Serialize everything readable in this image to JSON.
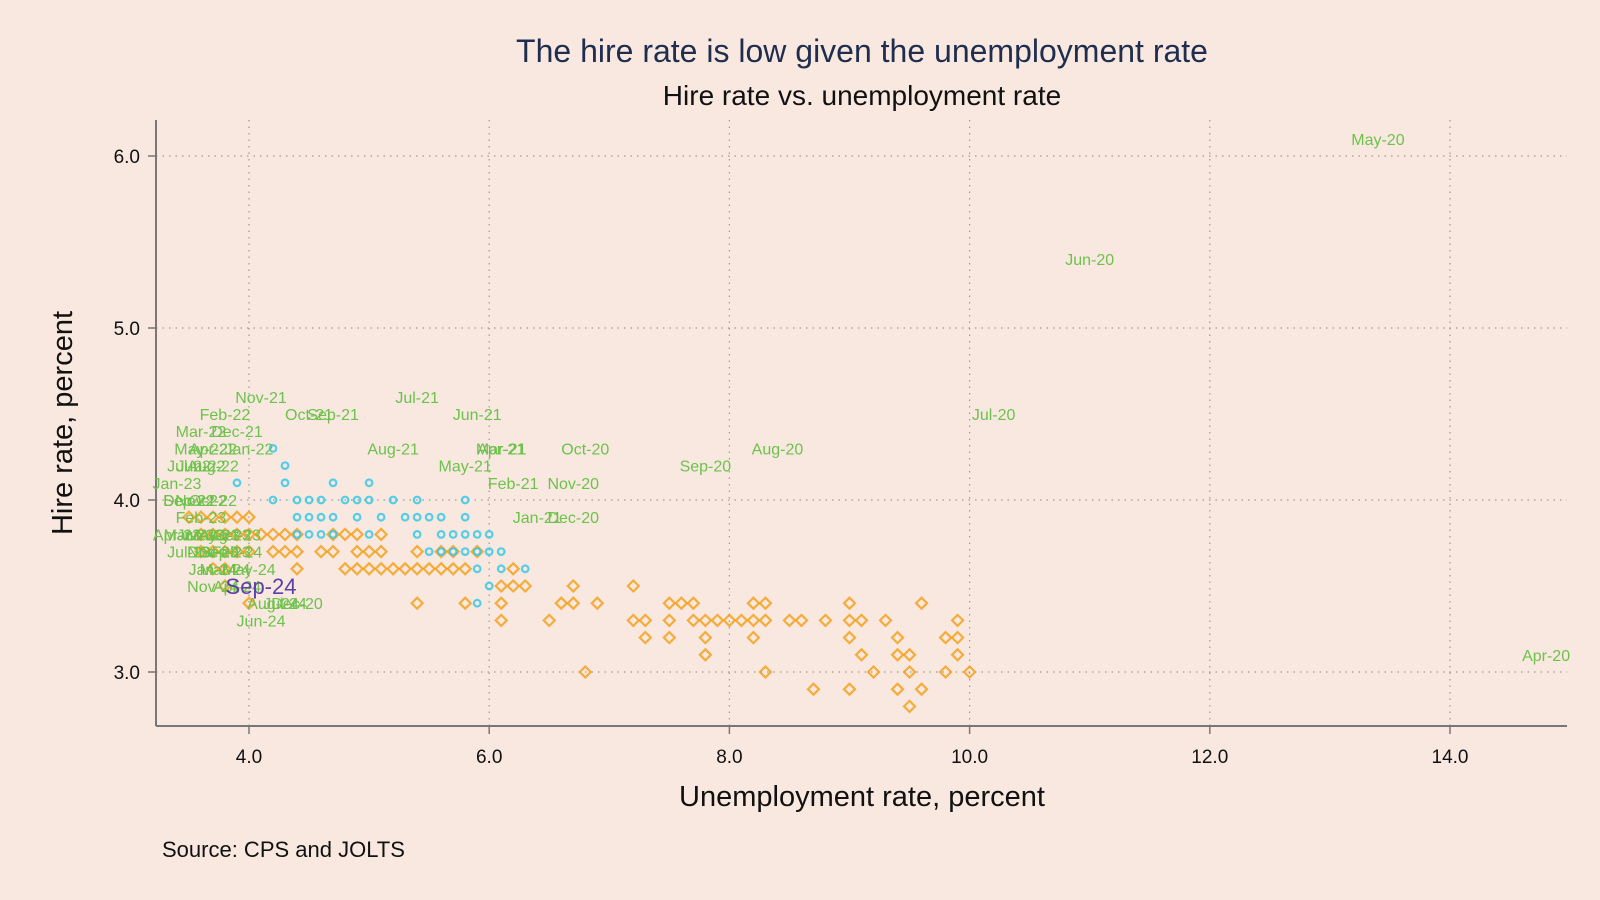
{
  "chart_data": {
    "type": "scatter",
    "title": "The hire rate is low given the unemployment rate",
    "subtitle": "Hire rate vs. unemployment rate",
    "xlabel": "Unemployment rate, percent",
    "ylabel": "Hire rate, percent",
    "note": "Source: CPS and JOLTS",
    "xlim": [
      3.2,
      15.0
    ],
    "ylim": [
      2.7,
      6.2
    ],
    "x_ticks": [
      4,
      6,
      8,
      10,
      12,
      14
    ],
    "x_tick_labels": [
      "4.0",
      "6.0",
      "8.0",
      "10.0",
      "12.0",
      "14.0"
    ],
    "y_ticks": [
      3,
      4,
      5,
      6
    ],
    "y_tick_labels": [
      "3.0",
      "4.0",
      "5.0",
      "6.0"
    ],
    "grid": true,
    "colors": {
      "background": "#f9e8e0",
      "orange_series": "#f39c12",
      "cyan_series": "#29c7e8",
      "labels": "#6cc24a",
      "highlight": "#5b3fa8",
      "title": "#1f2e4f"
    },
    "series": [
      {
        "marker": "diamond",
        "color": "#f39c12",
        "points": [
          [
            3.5,
            3.9
          ],
          [
            3.6,
            3.9
          ],
          [
            3.7,
            3.9
          ],
          [
            3.8,
            3.9
          ],
          [
            3.9,
            3.9
          ],
          [
            4.0,
            3.9
          ],
          [
            3.6,
            3.8
          ],
          [
            3.7,
            3.8
          ],
          [
            3.8,
            3.8
          ],
          [
            3.9,
            3.8
          ],
          [
            4.0,
            3.8
          ],
          [
            4.1,
            3.8
          ],
          [
            4.2,
            3.8
          ],
          [
            4.3,
            3.8
          ],
          [
            4.4,
            3.8
          ],
          [
            4.7,
            3.8
          ],
          [
            4.8,
            3.8
          ],
          [
            4.9,
            3.8
          ],
          [
            5.1,
            3.8
          ],
          [
            3.6,
            3.7
          ],
          [
            3.7,
            3.7
          ],
          [
            3.8,
            3.7
          ],
          [
            3.9,
            3.7
          ],
          [
            4.0,
            3.7
          ],
          [
            4.2,
            3.7
          ],
          [
            4.3,
            3.7
          ],
          [
            4.4,
            3.7
          ],
          [
            4.6,
            3.7
          ],
          [
            4.7,
            3.7
          ],
          [
            4.9,
            3.7
          ],
          [
            5.0,
            3.7
          ],
          [
            5.1,
            3.7
          ],
          [
            5.4,
            3.7
          ],
          [
            5.6,
            3.7
          ],
          [
            5.7,
            3.7
          ],
          [
            5.9,
            3.7
          ],
          [
            3.7,
            3.6
          ],
          [
            3.8,
            3.6
          ],
          [
            4.4,
            3.6
          ],
          [
            4.8,
            3.6
          ],
          [
            4.9,
            3.6
          ],
          [
            5.0,
            3.6
          ],
          [
            5.1,
            3.6
          ],
          [
            5.2,
            3.6
          ],
          [
            5.3,
            3.6
          ],
          [
            5.4,
            3.6
          ],
          [
            5.5,
            3.6
          ],
          [
            5.6,
            3.6
          ],
          [
            5.7,
            3.6
          ],
          [
            5.8,
            3.6
          ],
          [
            6.2,
            3.6
          ],
          [
            3.8,
            3.5
          ],
          [
            6.1,
            3.5
          ],
          [
            6.2,
            3.5
          ],
          [
            6.3,
            3.5
          ],
          [
            6.7,
            3.5
          ],
          [
            7.2,
            3.5
          ],
          [
            4.0,
            3.4
          ],
          [
            5.4,
            3.4
          ],
          [
            5.8,
            3.4
          ],
          [
            6.1,
            3.4
          ],
          [
            6.6,
            3.4
          ],
          [
            6.7,
            3.4
          ],
          [
            6.9,
            3.4
          ],
          [
            7.5,
            3.4
          ],
          [
            7.6,
            3.4
          ],
          [
            7.7,
            3.4
          ],
          [
            8.2,
            3.4
          ],
          [
            8.3,
            3.4
          ],
          [
            9.0,
            3.4
          ],
          [
            9.6,
            3.4
          ],
          [
            6.1,
            3.3
          ],
          [
            6.5,
            3.3
          ],
          [
            7.2,
            3.3
          ],
          [
            7.3,
            3.3
          ],
          [
            7.5,
            3.3
          ],
          [
            7.7,
            3.3
          ],
          [
            7.8,
            3.3
          ],
          [
            7.9,
            3.3
          ],
          [
            8.0,
            3.3
          ],
          [
            8.1,
            3.3
          ],
          [
            8.2,
            3.3
          ],
          [
            8.3,
            3.3
          ],
          [
            8.5,
            3.3
          ],
          [
            8.6,
            3.3
          ],
          [
            8.8,
            3.3
          ],
          [
            9.0,
            3.3
          ],
          [
            9.1,
            3.3
          ],
          [
            9.3,
            3.3
          ],
          [
            9.9,
            3.3
          ],
          [
            7.3,
            3.2
          ],
          [
            7.5,
            3.2
          ],
          [
            7.8,
            3.2
          ],
          [
            8.2,
            3.2
          ],
          [
            9.0,
            3.2
          ],
          [
            9.4,
            3.2
          ],
          [
            9.8,
            3.2
          ],
          [
            9.9,
            3.2
          ],
          [
            7.8,
            3.1
          ],
          [
            9.1,
            3.1
          ],
          [
            9.4,
            3.1
          ],
          [
            9.5,
            3.1
          ],
          [
            9.9,
            3.1
          ],
          [
            6.8,
            3.0
          ],
          [
            8.3,
            3.0
          ],
          [
            9.2,
            3.0
          ],
          [
            9.5,
            3.0
          ],
          [
            9.8,
            3.0
          ],
          [
            10.0,
            3.0
          ],
          [
            8.7,
            2.9
          ],
          [
            9.0,
            2.9
          ],
          [
            9.4,
            2.9
          ],
          [
            9.6,
            2.9
          ],
          [
            9.5,
            2.8
          ]
        ]
      },
      {
        "marker": "circle",
        "color": "#29c7e8",
        "points": [
          [
            4.2,
            4.3
          ],
          [
            4.3,
            4.2
          ],
          [
            3.9,
            4.1
          ],
          [
            4.3,
            4.1
          ],
          [
            4.7,
            4.1
          ],
          [
            5.0,
            4.1
          ],
          [
            4.2,
            4.0
          ],
          [
            4.4,
            4.0
          ],
          [
            4.5,
            4.0
          ],
          [
            4.6,
            4.0
          ],
          [
            4.8,
            4.0
          ],
          [
            4.9,
            4.0
          ],
          [
            5.0,
            4.0
          ],
          [
            5.2,
            4.0
          ],
          [
            5.4,
            4.0
          ],
          [
            5.8,
            4.0
          ],
          [
            4.4,
            3.9
          ],
          [
            4.5,
            3.9
          ],
          [
            4.6,
            3.9
          ],
          [
            4.7,
            3.9
          ],
          [
            4.9,
            3.9
          ],
          [
            5.1,
            3.9
          ],
          [
            5.3,
            3.9
          ],
          [
            5.4,
            3.9
          ],
          [
            5.5,
            3.9
          ],
          [
            5.6,
            3.9
          ],
          [
            5.8,
            3.9
          ],
          [
            4.4,
            3.8
          ],
          [
            4.5,
            3.8
          ],
          [
            4.6,
            3.8
          ],
          [
            4.7,
            3.8
          ],
          [
            5.0,
            3.8
          ],
          [
            5.4,
            3.8
          ],
          [
            5.6,
            3.8
          ],
          [
            5.7,
            3.8
          ],
          [
            5.8,
            3.8
          ],
          [
            5.9,
            3.8
          ],
          [
            6.0,
            3.8
          ],
          [
            5.5,
            3.7
          ],
          [
            5.6,
            3.7
          ],
          [
            5.7,
            3.7
          ],
          [
            5.8,
            3.7
          ],
          [
            5.9,
            3.7
          ],
          [
            6.0,
            3.7
          ],
          [
            6.1,
            3.7
          ],
          [
            5.9,
            3.6
          ],
          [
            6.1,
            3.6
          ],
          [
            6.3,
            3.6
          ],
          [
            6.0,
            3.5
          ],
          [
            5.9,
            3.4
          ]
        ]
      }
    ],
    "point_labels": [
      {
        "text": "May-20",
        "x": 13.4,
        "y": 6.1
      },
      {
        "text": "Jun-20",
        "x": 11.0,
        "y": 5.4
      },
      {
        "text": "Jul-20",
        "x": 10.2,
        "y": 4.5
      },
      {
        "text": "Apr-20",
        "x": 14.8,
        "y": 3.1
      },
      {
        "text": "Aug-20",
        "x": 8.4,
        "y": 4.3
      },
      {
        "text": "Sep-20",
        "x": 7.8,
        "y": 4.2
      },
      {
        "text": "Oct-20",
        "x": 6.8,
        "y": 4.3
      },
      {
        "text": "Nov-20",
        "x": 6.7,
        "y": 4.1
      },
      {
        "text": "Dec-20",
        "x": 6.7,
        "y": 3.9
      },
      {
        "text": "Jan-21",
        "x": 6.4,
        "y": 3.9
      },
      {
        "text": "Feb-21",
        "x": 6.2,
        "y": 4.1
      },
      {
        "text": "Mar-21",
        "x": 6.1,
        "y": 4.3
      },
      {
        "text": "Apr-21",
        "x": 6.1,
        "y": 4.3
      },
      {
        "text": "May-21",
        "x": 5.8,
        "y": 4.2
      },
      {
        "text": "Jun-21",
        "x": 5.9,
        "y": 4.5
      },
      {
        "text": "Jul-21",
        "x": 5.4,
        "y": 4.6
      },
      {
        "text": "Aug-21",
        "x": 5.2,
        "y": 4.3
      },
      {
        "text": "Sep-21",
        "x": 4.7,
        "y": 4.5
      },
      {
        "text": "Oct-21",
        "x": 4.5,
        "y": 4.5
      },
      {
        "text": "Nov-21",
        "x": 4.1,
        "y": 4.6
      },
      {
        "text": "Dec-21",
        "x": 3.9,
        "y": 4.4
      },
      {
        "text": "Jan-22",
        "x": 4.0,
        "y": 4.3
      },
      {
        "text": "Feb-22",
        "x": 3.8,
        "y": 4.5
      },
      {
        "text": "Mar-22",
        "x": 3.6,
        "y": 4.4
      },
      {
        "text": "Apr-22",
        "x": 3.7,
        "y": 4.3
      },
      {
        "text": "May-22",
        "x": 3.6,
        "y": 4.3
      },
      {
        "text": "Jun-22",
        "x": 3.6,
        "y": 4.2
      },
      {
        "text": "Jul-22",
        "x": 3.5,
        "y": 4.2
      },
      {
        "text": "Aug-22",
        "x": 3.7,
        "y": 4.2
      },
      {
        "text": "Sep-22",
        "x": 3.5,
        "y": 4.0
      },
      {
        "text": "Oct-22",
        "x": 3.7,
        "y": 4.0
      },
      {
        "text": "Nov-22",
        "x": 3.6,
        "y": 4.0
      },
      {
        "text": "Dec-22",
        "x": 3.5,
        "y": 4.0
      },
      {
        "text": "Jan-23",
        "x": 3.4,
        "y": 4.1
      },
      {
        "text": "Feb-23",
        "x": 3.6,
        "y": 3.9
      },
      {
        "text": "Mar-23",
        "x": 3.5,
        "y": 3.8
      },
      {
        "text": "Apr-23",
        "x": 3.4,
        "y": 3.8
      },
      {
        "text": "May-23",
        "x": 3.7,
        "y": 3.8
      },
      {
        "text": "Jun-23",
        "x": 3.6,
        "y": 3.8
      },
      {
        "text": "Jul-23",
        "x": 3.5,
        "y": 3.7
      },
      {
        "text": "Aug-23",
        "x": 3.8,
        "y": 3.8
      },
      {
        "text": "Sep-23",
        "x": 3.8,
        "y": 3.7
      },
      {
        "text": "Oct-23",
        "x": 3.9,
        "y": 3.8
      },
      {
        "text": "Nov-23",
        "x": 3.7,
        "y": 3.7
      },
      {
        "text": "Dec-23",
        "x": 3.7,
        "y": 3.7
      },
      {
        "text": "Jan-24",
        "x": 3.7,
        "y": 3.6
      },
      {
        "text": "Feb-24",
        "x": 3.9,
        "y": 3.7
      },
      {
        "text": "Mar-24",
        "x": 3.8,
        "y": 3.6
      },
      {
        "text": "Apr-24",
        "x": 3.9,
        "y": 3.5
      },
      {
        "text": "May-24",
        "x": 4.0,
        "y": 3.6
      },
      {
        "text": "Jun-24",
        "x": 4.1,
        "y": 3.3
      },
      {
        "text": "Jul-24",
        "x": 4.3,
        "y": 3.4
      },
      {
        "text": "Aug-24",
        "x": 4.2,
        "y": 3.4
      },
      {
        "text": "Nov-24",
        "x": 3.7,
        "y": 3.5
      },
      {
        "text": "Dec-20",
        "x": 4.4,
        "y": 3.4
      }
    ],
    "highlight_label": {
      "text": "Sep-24",
      "x": 4.1,
      "y": 3.5
    }
  }
}
